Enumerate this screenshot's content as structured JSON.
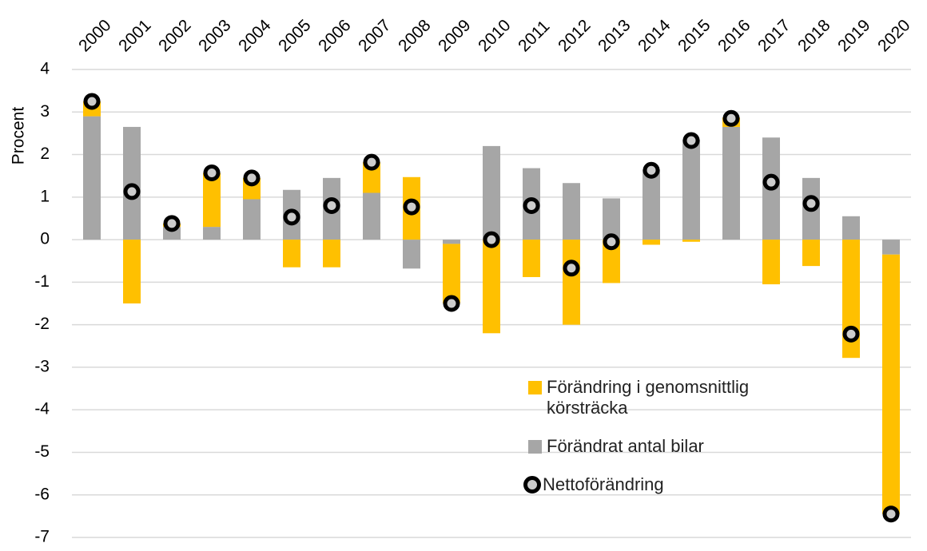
{
  "chart_data": {
    "type": "bar",
    "y_label": "Procent",
    "categories": [
      "2000",
      "2001",
      "2002",
      "2003",
      "2004",
      "2005",
      "2006",
      "2007",
      "2008",
      "2009",
      "2010",
      "2011",
      "2012",
      "2013",
      "2014",
      "2015",
      "2016",
      "2017",
      "2018",
      "2019",
      "2020"
    ],
    "series": [
      {
        "name": "Förändrat antal bilar",
        "color": "#a6a6a6",
        "values": [
          2.9,
          2.65,
          0.3,
          0.3,
          0.95,
          1.17,
          1.45,
          1.1,
          -0.68,
          -0.1,
          2.2,
          1.68,
          1.33,
          0.97,
          1.65,
          2.35,
          2.65,
          2.4,
          1.45,
          0.55,
          -0.35
        ]
      },
      {
        "name": "Förändring i genomsnittlig körsträcka",
        "color": "#ffc000",
        "values": [
          0.35,
          -1.5,
          0.08,
          1.27,
          0.5,
          -0.65,
          -0.65,
          0.72,
          1.47,
          -1.4,
          -2.2,
          -0.88,
          -2.0,
          -1.02,
          -0.12,
          -0.05,
          0.22,
          -1.05,
          -0.62,
          -2.78,
          -6.1
        ]
      },
      {
        "name": "Nettoförändring",
        "type": "dot",
        "color": "#000000",
        "values": [
          3.25,
          1.13,
          0.38,
          1.57,
          1.45,
          0.53,
          0.8,
          1.82,
          0.77,
          -1.5,
          0,
          0.8,
          -0.67,
          -0.05,
          1.63,
          2.33,
          2.85,
          1.35,
          0.85,
          -2.22,
          -6.45
        ]
      }
    ],
    "ylim": [
      -7,
      4
    ],
    "yticks": [
      -7,
      -6,
      -5,
      -4,
      -3,
      -2,
      -1,
      0,
      1,
      2,
      3,
      4
    ],
    "grid": true
  }
}
